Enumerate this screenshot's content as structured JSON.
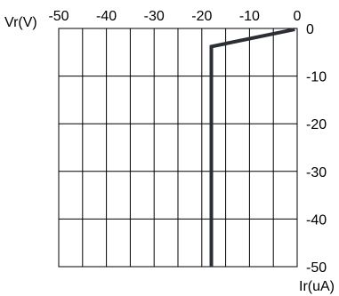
{
  "chart_data": {
    "type": "line",
    "title": "",
    "xlabel": "Vr(V)",
    "ylabel": "Ir(uA)",
    "xlim": [
      -50,
      0
    ],
    "ylim": [
      -50,
      0
    ],
    "x_ticks": [
      -50,
      -40,
      -30,
      -20,
      -10,
      0
    ],
    "y_ticks": [
      0,
      -10,
      -20,
      -30,
      -40,
      -50
    ],
    "x_tick_labels": [
      "-50",
      "-40",
      "-30",
      "-20",
      "-10",
      "0"
    ],
    "y_tick_labels": [
      "0",
      "-10",
      "-20",
      "-30",
      "-40",
      "-50"
    ],
    "x_axis_position": "top",
    "y_axis_position": "right",
    "grid": true,
    "x_grid_step": 5,
    "y_grid_step": 10,
    "series": [
      {
        "x": [
          -18,
          -18,
          -0.5
        ],
        "y": [
          -50,
          -3.8,
          -0.2
        ],
        "color": "#2b2f33"
      }
    ]
  }
}
